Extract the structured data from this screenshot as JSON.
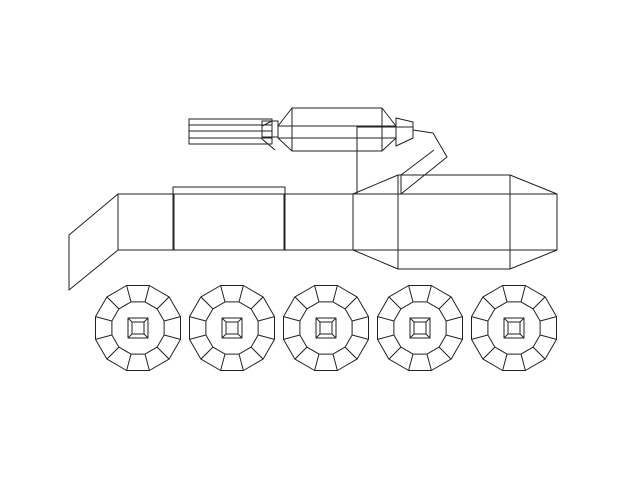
{
  "drawing": {
    "subject": "tank-wireframe",
    "line_color": "#222222",
    "background": "#ffffff",
    "wheel_count": 5
  }
}
